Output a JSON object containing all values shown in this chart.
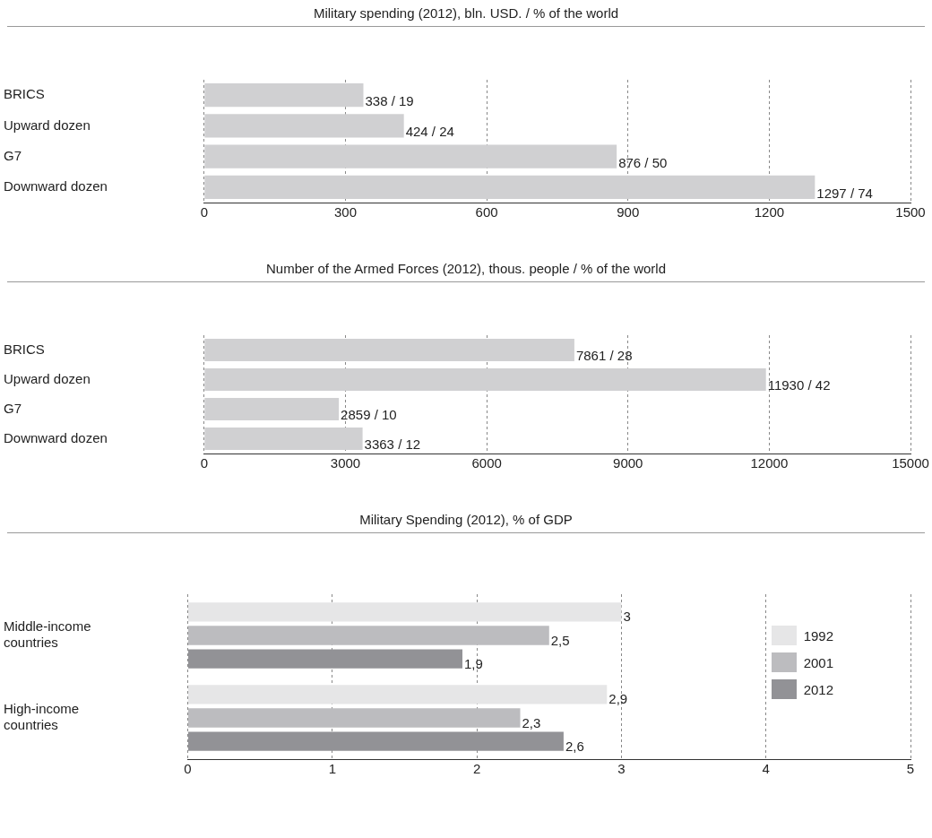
{
  "chart_data": [
    {
      "type": "bar",
      "orientation": "horizontal",
      "title": "Military spending (2012), bln. USD. / % of the world",
      "categories": [
        "BRICS",
        "Upward dozen",
        "G7",
        "Downward dozen"
      ],
      "values": [
        338,
        424,
        876,
        1297
      ],
      "value_labels": [
        "338 / 19",
        "424 / 24",
        "876 / 50",
        "1297 / 74"
      ],
      "color": "#d0d0d2",
      "xlim": [
        0,
        1500
      ],
      "xticks": [
        0,
        300,
        600,
        900,
        1200,
        1500
      ],
      "grid": "x"
    },
    {
      "type": "bar",
      "orientation": "horizontal",
      "title": "Number of the Armed Forces (2012), thous. people / % of the world",
      "categories": [
        "BRICS",
        "Upward dozen",
        "G7",
        "Downward dozen"
      ],
      "values": [
        7861,
        11930,
        2859,
        3363
      ],
      "value_labels": [
        "7861 / 28",
        "11930 / 42",
        "2859 / 10",
        "3363 / 12"
      ],
      "color": "#d0d0d2",
      "xlim": [
        0,
        15000
      ],
      "xticks": [
        0,
        3000,
        6000,
        9000,
        12000,
        15000
      ],
      "grid": "x"
    },
    {
      "type": "bar",
      "orientation": "horizontal",
      "title": "Military Spending (2012), % of GDP",
      "categories": [
        "Middle-income countries",
        "High-income countries"
      ],
      "series": [
        {
          "name": "1992",
          "color": "#e6e6e7",
          "values": [
            3,
            2.9
          ],
          "value_labels": [
            "3",
            "2,9"
          ]
        },
        {
          "name": "2001",
          "color": "#bcbcbf",
          "values": [
            2.5,
            2.3
          ],
          "value_labels": [
            "2,5",
            "2,3"
          ]
        },
        {
          "name": "2012",
          "color": "#929296",
          "values": [
            1.9,
            2.6
          ],
          "value_labels": [
            "1,9",
            "2,6"
          ]
        }
      ],
      "xlim": [
        0,
        5
      ],
      "xticks": [
        0,
        1,
        2,
        3,
        4,
        5
      ],
      "grid": "x",
      "legend": "right"
    }
  ]
}
